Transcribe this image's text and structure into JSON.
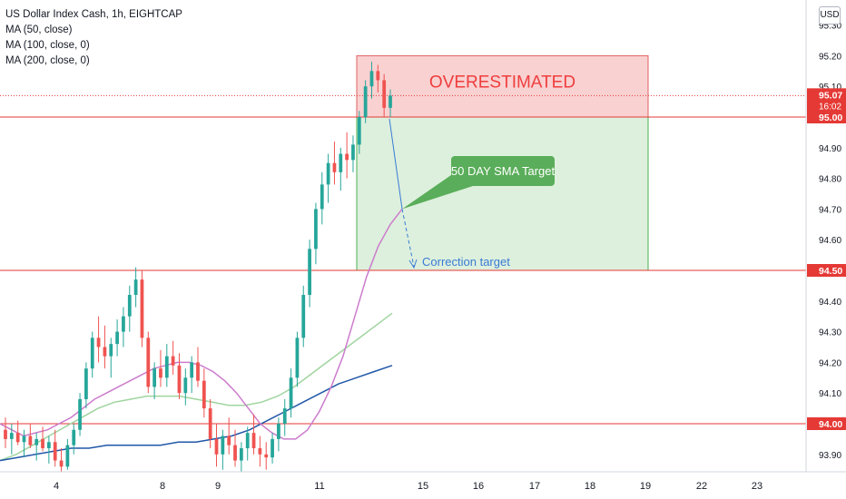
{
  "legend": {
    "title": "US Dollar Index Cash, 1h, EIGHTCAP",
    "ma50": "MA (50, close)",
    "ma100": "MA (100, close, 0)",
    "ma200": "MA (200, close, 0)"
  },
  "currency_button": "USD",
  "colors": {
    "up": "#26a69a",
    "down": "#ef5350",
    "ma50": "#cc7ccc",
    "ma100": "#9fd59f",
    "ma200": "#2157a8",
    "level": "#e53935",
    "zone_red": "#f7c6c6",
    "zone_green": "#d4ecd4",
    "callout": "#5aad5a",
    "arrow": "#3a7bd5"
  },
  "chart_data": {
    "type": "candlestick",
    "y_ticks": [
      "95.30",
      "95.20",
      "95.10",
      "95.00",
      "94.90",
      "94.80",
      "94.70",
      "94.60",
      "94.50",
      "94.40",
      "94.30",
      "94.20",
      "94.10",
      "94.00",
      "93.90"
    ],
    "y_range": [
      93.85,
      95.33
    ],
    "x_ticks": [
      "4",
      "8",
      "9",
      "11",
      "15",
      "16",
      "17",
      "18",
      "19",
      "22",
      "23"
    ],
    "price_labels": [
      {
        "value": 95.07,
        "text": "95.07",
        "sub": "16:02",
        "kind": "current"
      },
      {
        "value": 95.0,
        "text": "95.00",
        "kind": "level"
      },
      {
        "value": 94.5,
        "text": "94.50",
        "kind": "level"
      },
      {
        "value": 94.0,
        "text": "94.00",
        "kind": "level"
      }
    ],
    "levels": [
      95.0,
      94.5,
      94.0
    ],
    "current_price": 95.07,
    "zones": [
      {
        "label": "OVERESTIMATED",
        "from": 95.0,
        "to": 95.2,
        "color": "red"
      },
      {
        "label": "",
        "from": 94.5,
        "to": 95.0,
        "color": "green"
      }
    ],
    "annotations": {
      "callout": "50 DAY SMA Target",
      "correction": "Correction target"
    },
    "candles": [
      [
        93.98,
        94.02,
        93.92,
        93.95
      ],
      [
        93.95,
        94.0,
        93.9,
        93.97
      ],
      [
        93.97,
        94.01,
        93.93,
        93.94
      ],
      [
        93.94,
        93.98,
        93.89,
        93.96
      ],
      [
        93.96,
        94.0,
        93.92,
        93.93
      ],
      [
        93.93,
        93.97,
        93.88,
        93.95
      ],
      [
        93.95,
        93.99,
        93.91,
        93.92
      ],
      [
        93.92,
        93.96,
        93.87,
        93.94
      ],
      [
        93.94,
        93.98,
        93.86,
        93.88
      ],
      [
        93.88,
        93.92,
        93.84,
        93.86
      ],
      [
        93.86,
        93.95,
        93.85,
        93.93
      ],
      [
        93.93,
        94.0,
        93.9,
        93.98
      ],
      [
        93.98,
        94.1,
        93.96,
        94.08
      ],
      [
        94.08,
        94.2,
        94.05,
        94.18
      ],
      [
        94.18,
        94.3,
        94.15,
        94.28
      ],
      [
        94.28,
        94.35,
        94.2,
        94.25
      ],
      [
        94.25,
        94.32,
        94.18,
        94.22
      ],
      [
        94.22,
        94.28,
        94.15,
        94.26
      ],
      [
        94.26,
        94.34,
        94.22,
        94.3
      ],
      [
        94.3,
        94.38,
        94.25,
        94.35
      ],
      [
        94.35,
        94.45,
        94.3,
        94.42
      ],
      [
        94.42,
        94.51,
        94.38,
        94.47
      ],
      [
        94.47,
        94.5,
        94.25,
        94.28
      ],
      [
        94.28,
        94.3,
        94.1,
        94.12
      ],
      [
        94.12,
        94.2,
        94.08,
        94.18
      ],
      [
        94.18,
        94.24,
        94.12,
        94.15
      ],
      [
        94.15,
        94.26,
        94.12,
        94.22
      ],
      [
        94.22,
        94.27,
        94.16,
        94.19
      ],
      [
        94.19,
        94.23,
        94.08,
        94.1
      ],
      [
        94.1,
        94.18,
        94.06,
        94.15
      ],
      [
        94.15,
        94.22,
        94.1,
        94.2
      ],
      [
        94.2,
        94.25,
        94.12,
        94.14
      ],
      [
        94.14,
        94.18,
        94.02,
        94.05
      ],
      [
        94.05,
        94.08,
        93.92,
        93.95
      ],
      [
        93.95,
        94.0,
        93.86,
        93.9
      ],
      [
        93.9,
        93.98,
        93.85,
        93.96
      ],
      [
        93.96,
        94.02,
        93.9,
        93.93
      ],
      [
        93.93,
        93.98,
        93.86,
        93.88
      ],
      [
        93.88,
        93.94,
        93.84,
        93.92
      ],
      [
        93.92,
        93.99,
        93.88,
        93.97
      ],
      [
        93.97,
        94.03,
        93.9,
        93.92
      ],
      [
        93.92,
        93.96,
        93.86,
        93.9
      ],
      [
        93.9,
        93.94,
        93.85,
        93.89
      ],
      [
        93.89,
        93.97,
        93.87,
        93.95
      ],
      [
        93.95,
        94.02,
        93.91,
        94.0
      ],
      [
        94.0,
        94.08,
        93.96,
        94.05
      ],
      [
        94.05,
        94.18,
        94.02,
        94.15
      ],
      [
        94.15,
        94.3,
        94.12,
        94.28
      ],
      [
        94.28,
        94.45,
        94.25,
        94.42
      ],
      [
        94.42,
        94.6,
        94.38,
        94.57
      ],
      [
        94.57,
        94.72,
        94.52,
        94.7
      ],
      [
        94.7,
        94.82,
        94.65,
        94.78
      ],
      [
        94.78,
        94.88,
        94.72,
        94.85
      ],
      [
        94.85,
        94.92,
        94.78,
        94.82
      ],
      [
        94.82,
        94.9,
        94.76,
        94.88
      ],
      [
        94.88,
        94.95,
        94.8,
        94.86
      ],
      [
        94.86,
        94.94,
        94.82,
        94.91
      ],
      [
        94.91,
        95.02,
        94.88,
        95.0
      ],
      [
        95.0,
        95.12,
        94.98,
        95.1
      ],
      [
        95.1,
        95.18,
        95.06,
        95.15
      ],
      [
        95.15,
        95.17,
        95.08,
        95.12
      ],
      [
        95.12,
        95.14,
        95.0,
        95.03
      ],
      [
        95.03,
        95.09,
        95.0,
        95.07
      ]
    ],
    "ma50": [
      94.0,
      93.98,
      93.96,
      93.97,
      93.98,
      94.0,
      94.02,
      94.05,
      94.08,
      94.1,
      94.12,
      94.14,
      94.16,
      94.18,
      94.19,
      94.2,
      94.2,
      94.19,
      94.17,
      94.14,
      94.1,
      94.05,
      94.0,
      93.97,
      93.95,
      93.95,
      93.98,
      94.04,
      94.12,
      94.22,
      94.35,
      94.48,
      94.58,
      94.65,
      94.7
    ],
    "ma100": [
      93.88,
      93.9,
      93.93,
      93.96,
      93.99,
      94.02,
      94.05,
      94.07,
      94.08,
      94.09,
      94.09,
      94.09,
      94.08,
      94.07,
      94.06,
      94.06,
      94.07,
      94.09,
      94.12,
      94.16,
      94.2,
      94.24,
      94.28,
      94.32,
      94.36
    ],
    "ma200": [
      93.88,
      93.89,
      93.9,
      93.91,
      93.92,
      93.92,
      93.93,
      93.93,
      93.93,
      93.93,
      93.94,
      93.94,
      93.95,
      93.96,
      93.98,
      94.01,
      94.04,
      94.07,
      94.1,
      94.13,
      94.15,
      94.17,
      94.19
    ]
  }
}
